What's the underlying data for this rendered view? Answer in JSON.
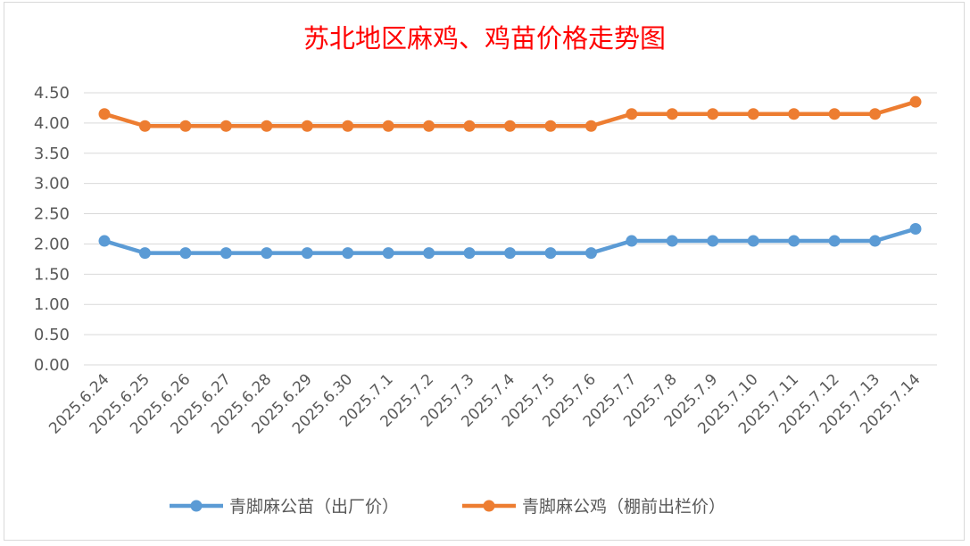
{
  "chart_data": {
    "type": "line",
    "title": "苏北地区麻鸡、鸡苗价格走势图",
    "xlabel": "",
    "ylabel": "",
    "categories": [
      "2025.6.24",
      "2025.6.25",
      "2025.6.26",
      "2025.6.27",
      "2025.6.28",
      "2025.6.29",
      "2025.6.30",
      "2025.7.1",
      "2025.7.2",
      "2025.7.3",
      "2025.7.4",
      "2025.7.5",
      "2025.7.6",
      "2025.7.7",
      "2025.7.8",
      "2025.7.9",
      "2025.7.10",
      "2025.7.11",
      "2025.7.12",
      "2025.7.13",
      "2025.7.14"
    ],
    "y_ticks": [
      "0.00",
      "0.50",
      "1.00",
      "1.50",
      "2.00",
      "2.50",
      "3.00",
      "3.50",
      "4.00",
      "4.50"
    ],
    "ylim": [
      0,
      4.5
    ],
    "grid": true,
    "legend_position": "bottom",
    "series": [
      {
        "name": "青脚麻公苗（出厂价）",
        "color": "#5b9bd5",
        "values": [
          2.05,
          1.85,
          1.85,
          1.85,
          1.85,
          1.85,
          1.85,
          1.85,
          1.85,
          1.85,
          1.85,
          1.85,
          1.85,
          2.05,
          2.05,
          2.05,
          2.05,
          2.05,
          2.05,
          2.05,
          2.25
        ]
      },
      {
        "name": "青脚麻公鸡（棚前出栏价）",
        "color": "#ed7d31",
        "values": [
          4.15,
          3.95,
          3.95,
          3.95,
          3.95,
          3.95,
          3.95,
          3.95,
          3.95,
          3.95,
          3.95,
          3.95,
          3.95,
          4.15,
          4.15,
          4.15,
          4.15,
          4.15,
          4.15,
          4.15,
          4.35
        ]
      }
    ]
  }
}
